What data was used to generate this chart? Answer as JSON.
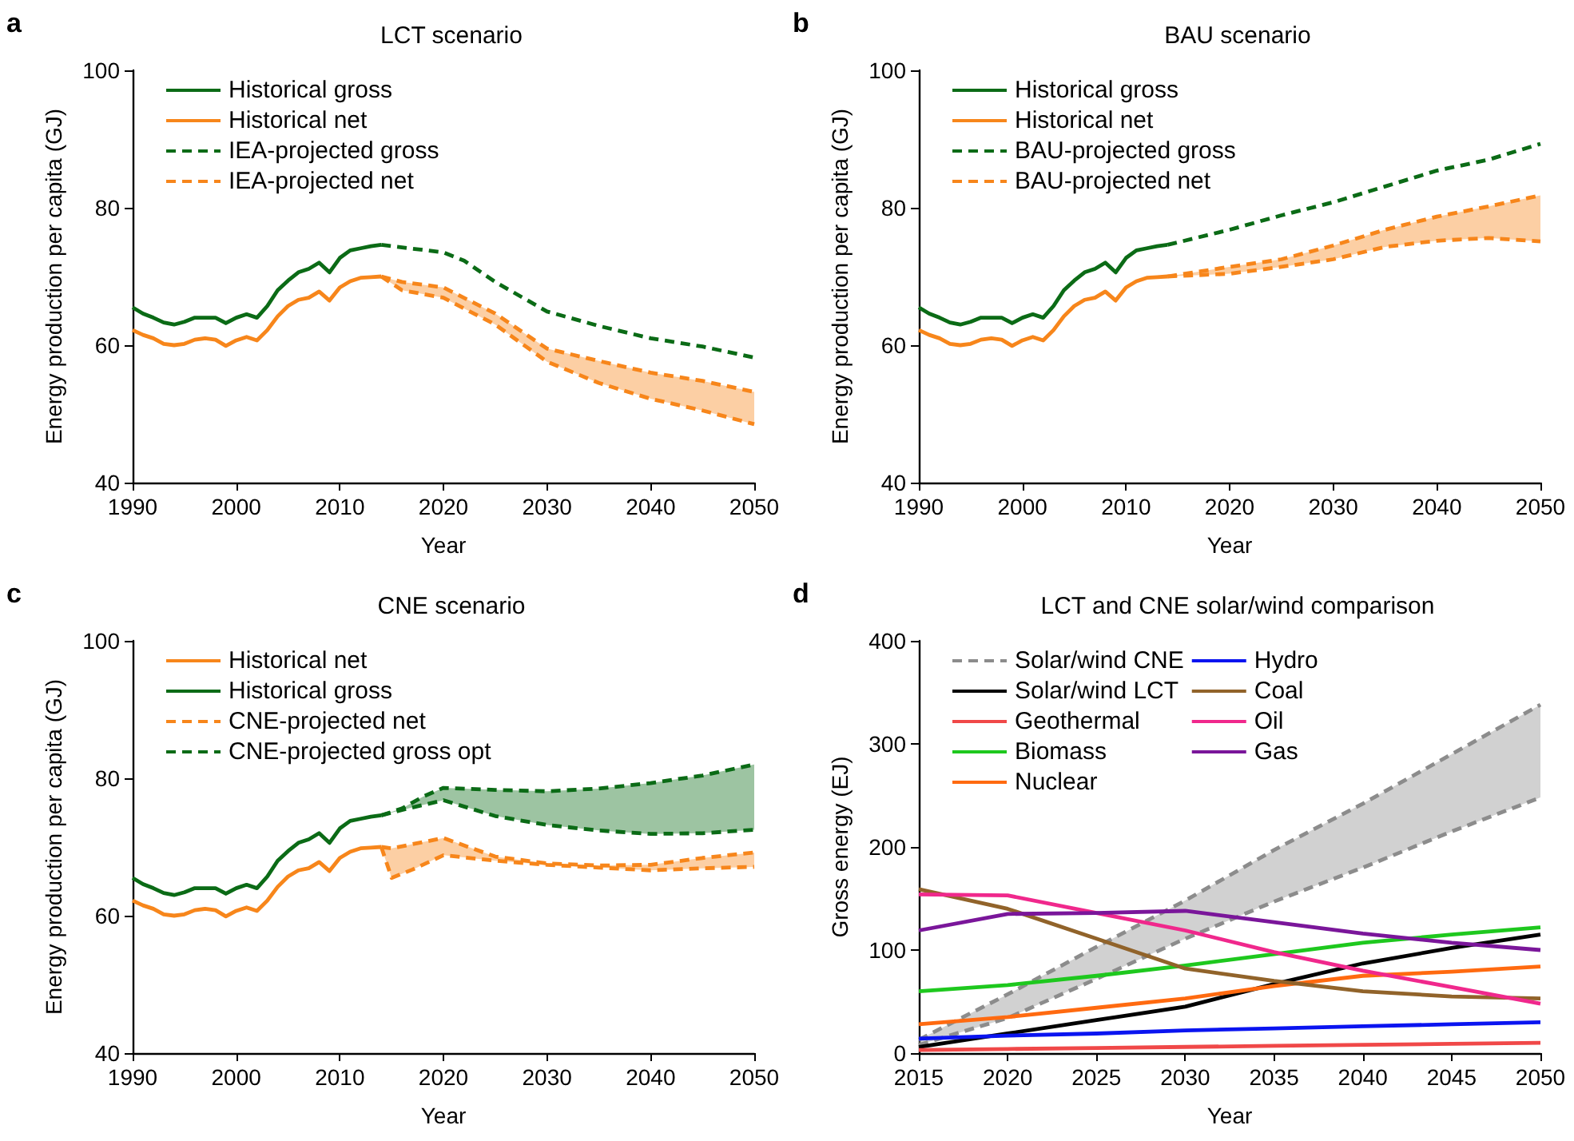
{
  "chart_data": [
    {
      "type": "line",
      "title": "LCT scenario",
      "annotations": [
        "a"
      ],
      "xlabel": "Year",
      "ylabel": "Energy production per capita (GJ)",
      "xlim": [
        1990,
        2050
      ],
      "xticks": [
        1990,
        2000,
        2010,
        2020,
        2030,
        2040,
        2050
      ],
      "ylim": [
        40,
        100
      ],
      "yticks": [
        40,
        60,
        80,
        100
      ],
      "legend": "top left",
      "marker": "none",
      "series": [
        {
          "name": "Historical gross",
          "color": "#0b6b16",
          "line_style": "solid",
          "x": [
            1990,
            1991,
            1992,
            1993,
            1994,
            1995,
            1996,
            1997,
            1998,
            1999,
            2000,
            2001,
            2002,
            2003,
            2004,
            2005,
            2006,
            2007,
            2008,
            2009,
            2010,
            2011,
            2012,
            2013,
            2014
          ],
          "values": [
            65.5,
            64.6,
            64,
            63.3,
            63,
            63.4,
            64,
            64,
            64,
            63.2,
            64,
            64.5,
            64,
            65.7,
            68,
            69.4,
            70.6,
            71.1,
            72,
            70.6,
            72.7,
            73.8,
            74.1,
            74.4,
            74.6
          ]
        },
        {
          "name": "Historical net",
          "color": "#f7861b",
          "line_style": "solid",
          "x": [
            1990,
            1991,
            1992,
            1993,
            1994,
            1995,
            1996,
            1997,
            1998,
            1999,
            2000,
            2001,
            2002,
            2003,
            2004,
            2005,
            2006,
            2007,
            2008,
            2009,
            2010,
            2011,
            2012,
            2013,
            2014
          ],
          "values": [
            62.2,
            61.5,
            61,
            60.2,
            60,
            60.2,
            60.8,
            61,
            60.8,
            59.9,
            60.7,
            61.2,
            60.7,
            62.2,
            64.2,
            65.7,
            66.6,
            66.9,
            67.8,
            66.5,
            68.4,
            69.3,
            69.8,
            69.9,
            70
          ]
        },
        {
          "name": "IEA-projected gross",
          "color": "#0b6b16",
          "line_style": "dashed",
          "x": [
            2014,
            2020,
            2022,
            2025,
            2030,
            2035,
            2040,
            2045,
            2050
          ],
          "values": [
            74.6,
            73.5,
            72.3,
            69.2,
            64.9,
            62.8,
            61,
            59.8,
            58.2
          ]
        },
        {
          "name": "IEA-projected net",
          "color": "#f7861b",
          "line_style": "dashed",
          "x": [
            2014,
            2016,
            2020,
            2025,
            2030,
            2035,
            2040,
            2045,
            2050
          ],
          "values": [
            70,
            69.2,
            68.4,
            64.6,
            59.5,
            57.7,
            56,
            54.8,
            53.2
          ],
          "lower": [
            70,
            68,
            66.9,
            63,
            57.6,
            54.5,
            52.2,
            50.5,
            48.5
          ],
          "upper": [
            70,
            69.2,
            68.4,
            64.6,
            59.5,
            57.7,
            56,
            54.8,
            53.2
          ]
        },
        {
          "color": "#f7861b",
          "line_style": "dashed",
          "x": [
            2014,
            2016,
            2020,
            2025,
            2030,
            2035,
            2040,
            2045,
            2050
          ],
          "values": [
            70,
            68,
            66.9,
            63,
            57.6,
            54.5,
            52.2,
            50.5,
            48.5
          ]
        }
      ]
    },
    {
      "type": "line",
      "title": "BAU scenario",
      "annotations": [
        "b"
      ],
      "xlabel": "Year",
      "ylabel": "Energy production per capita (GJ)",
      "xlim": [
        1990,
        2050
      ],
      "xticks": [
        1990,
        2000,
        2010,
        2020,
        2030,
        2040,
        2050
      ],
      "ylim": [
        40,
        100
      ],
      "yticks": [
        40,
        60,
        80,
        100
      ],
      "legend": "top left",
      "marker": "none",
      "series": [
        {
          "name": "Historical gross",
          "color": "#0b6b16",
          "line_style": "solid",
          "x": [
            1990,
            1991,
            1992,
            1993,
            1994,
            1995,
            1996,
            1997,
            1998,
            1999,
            2000,
            2001,
            2002,
            2003,
            2004,
            2005,
            2006,
            2007,
            2008,
            2009,
            2010,
            2011,
            2012,
            2013,
            2014
          ],
          "values": [
            65.5,
            64.6,
            64,
            63.3,
            63,
            63.4,
            64,
            64,
            64,
            63.2,
            64,
            64.5,
            64,
            65.7,
            68,
            69.4,
            70.6,
            71.1,
            72,
            70.6,
            72.7,
            73.8,
            74.1,
            74.4,
            74.6
          ]
        },
        {
          "name": "Historical net",
          "color": "#f7861b",
          "line_style": "solid",
          "x": [
            1990,
            1991,
            1992,
            1993,
            1994,
            1995,
            1996,
            1997,
            1998,
            1999,
            2000,
            2001,
            2002,
            2003,
            2004,
            2005,
            2006,
            2007,
            2008,
            2009,
            2010,
            2011,
            2012,
            2013,
            2014
          ],
          "values": [
            62.2,
            61.5,
            61,
            60.2,
            60,
            60.2,
            60.8,
            61,
            60.8,
            59.9,
            60.7,
            61.2,
            60.7,
            62.2,
            64.2,
            65.7,
            66.6,
            66.9,
            67.8,
            66.5,
            68.4,
            69.3,
            69.8,
            69.9,
            70
          ]
        },
        {
          "name": "BAU-projected gross",
          "color": "#0b6b16",
          "line_style": "dashed",
          "x": [
            2014,
            2020,
            2025,
            2030,
            2035,
            2040,
            2045,
            2050
          ],
          "values": [
            74.6,
            76.8,
            78.9,
            80.8,
            83.1,
            85.4,
            87,
            89.3
          ]
        },
        {
          "name": "BAU-projected net",
          "color": "#f7861b",
          "line_style": "dashed",
          "x": [
            2014,
            2020,
            2025,
            2030,
            2035,
            2040,
            2045,
            2050
          ],
          "values": [
            70,
            71.4,
            72.5,
            74.5,
            76.8,
            78.7,
            80.2,
            81.8
          ],
          "lower": [
            70,
            70.4,
            71.4,
            72.5,
            74.3,
            75.2,
            75.6,
            75.1
          ],
          "upper": [
            70,
            71.4,
            72.5,
            74.5,
            76.8,
            78.7,
            80.2,
            81.8
          ]
        },
        {
          "color": "#f7861b",
          "line_style": "dashed",
          "x": [
            2014,
            2020,
            2025,
            2030,
            2035,
            2040,
            2045,
            2050
          ],
          "values": [
            70,
            70.4,
            71.4,
            72.5,
            74.3,
            75.2,
            75.6,
            75.1
          ]
        }
      ]
    },
    {
      "type": "line",
      "title": "CNE scenario",
      "annotations": [
        "c"
      ],
      "xlabel": "Year",
      "ylabel": "Energy production per capita (GJ)",
      "xlim": [
        1990,
        2050
      ],
      "xticks": [
        1990,
        2000,
        2010,
        2020,
        2030,
        2040,
        2050
      ],
      "ylim": [
        40,
        100
      ],
      "yticks": [
        40,
        60,
        80,
        100
      ],
      "legend": "top left",
      "marker": "none",
      "series": [
        {
          "name": "Historical net",
          "color": "#f7861b",
          "line_style": "solid",
          "x": [
            1990,
            1991,
            1992,
            1993,
            1994,
            1995,
            1996,
            1997,
            1998,
            1999,
            2000,
            2001,
            2002,
            2003,
            2004,
            2005,
            2006,
            2007,
            2008,
            2009,
            2010,
            2011,
            2012,
            2013,
            2014
          ],
          "values": [
            62.2,
            61.5,
            61,
            60.2,
            60,
            60.2,
            60.8,
            61,
            60.8,
            59.9,
            60.7,
            61.2,
            60.7,
            62.2,
            64.2,
            65.7,
            66.6,
            66.9,
            67.8,
            66.5,
            68.4,
            69.3,
            69.8,
            69.9,
            70
          ]
        },
        {
          "name": "Historical gross",
          "color": "#0b6b16",
          "line_style": "solid",
          "x": [
            1990,
            1991,
            1992,
            1993,
            1994,
            1995,
            1996,
            1997,
            1998,
            1999,
            2000,
            2001,
            2002,
            2003,
            2004,
            2005,
            2006,
            2007,
            2008,
            2009,
            2010,
            2011,
            2012,
            2013,
            2014
          ],
          "values": [
            65.5,
            64.6,
            64,
            63.3,
            63,
            63.4,
            64,
            64,
            64,
            63.2,
            64,
            64.5,
            64,
            65.7,
            68,
            69.4,
            70.6,
            71.1,
            72,
            70.6,
            72.7,
            73.8,
            74.1,
            74.4,
            74.6
          ]
        },
        {
          "name": "CNE-projected net",
          "color": "#f7861b",
          "line_style": "dashed",
          "x": [
            2014,
            2015,
            2017,
            2020,
            2025,
            2030,
            2035,
            2040,
            2045,
            2050
          ],
          "values": [
            70,
            69.8,
            70.4,
            71.3,
            68.6,
            67.6,
            67.3,
            67.4,
            68.4,
            69.2
          ],
          "lower": [
            70,
            65.5,
            66.7,
            68.8,
            68,
            67.4,
            67,
            66.6,
            66.9,
            67.1
          ],
          "upper": [
            70,
            69.8,
            70.4,
            71.3,
            68.6,
            67.6,
            67.3,
            67.4,
            68.4,
            69.2
          ]
        },
        {
          "color": "#f7861b",
          "line_style": "dashed",
          "x": [
            2014,
            2015,
            2017,
            2020,
            2025,
            2030,
            2035,
            2040,
            2045,
            2050
          ],
          "values": [
            70,
            65.5,
            66.7,
            68.8,
            68,
            67.4,
            67,
            66.6,
            66.9,
            67.1
          ]
        },
        {
          "name": "CNE-projected gross opt",
          "color": "#0b6b16",
          "line_style": "dashed",
          "x": [
            2014,
            2016,
            2018,
            2020,
            2025,
            2030,
            2035,
            2040,
            2045,
            2050
          ],
          "values": [
            74.6,
            75.6,
            77.3,
            78.6,
            78.3,
            78.1,
            78.5,
            79.3,
            80.4,
            82
          ],
          "lower": [
            74.6,
            75.4,
            76.1,
            76.8,
            74.5,
            73.2,
            72.4,
            71.9,
            72,
            72.5
          ],
          "upper": [
            74.6,
            75.6,
            77.3,
            78.6,
            78.3,
            78.1,
            78.5,
            79.3,
            80.4,
            82
          ]
        },
        {
          "color": "#0b6b16",
          "line_style": "dashed",
          "x": [
            2014,
            2016,
            2018,
            2020,
            2025,
            2030,
            2035,
            2040,
            2045,
            2050
          ],
          "values": [
            74.6,
            75.4,
            76.1,
            76.8,
            74.5,
            73.2,
            72.4,
            71.9,
            72,
            72.5
          ]
        }
      ]
    },
    {
      "type": "line",
      "title": "LCT and CNE solar/wind comparison",
      "annotations": [
        "d"
      ],
      "xlabel": "Year",
      "ylabel": "Gross energy (EJ)",
      "xlim": [
        2015,
        2050
      ],
      "xticks": [
        2015,
        2020,
        2025,
        2030,
        2035,
        2040,
        2045,
        2050
      ],
      "ylim": [
        0,
        400
      ],
      "yticks": [
        0,
        100,
        200,
        300,
        400
      ],
      "legend": "top left",
      "marker": "none",
      "x": [
        2015,
        2020,
        2025,
        2030,
        2035,
        2040,
        2045,
        2050
      ],
      "series": [
        {
          "name": "Solar/wind CNE",
          "color": "#8c8c8c",
          "line_style": "dashed",
          "values": [
            13,
            57,
            103,
            148,
            197,
            242,
            290,
            338
          ],
          "lower": [
            8,
            34,
            72,
            111,
            147,
            180,
            215,
            248
          ],
          "upper": [
            13,
            57,
            103,
            148,
            197,
            242,
            290,
            338
          ]
        },
        {
          "color": "#8c8c8c",
          "line_style": "dashed",
          "values": [
            8,
            34,
            72,
            111,
            147,
            180,
            215,
            248
          ]
        },
        {
          "name": "Solar/wind LCT",
          "color": "#000000",
          "line_style": "solid",
          "values": [
            6,
            19,
            32,
            45,
            67,
            87,
            102,
            115
          ]
        },
        {
          "name": "Geothermal",
          "color": "#f04848",
          "line_style": "solid",
          "values": [
            3,
            4,
            5,
            6,
            7,
            8,
            9,
            10
          ]
        },
        {
          "name": "Biomass",
          "color": "#1ec81e",
          "line_style": "solid",
          "values": [
            60,
            66,
            75,
            85,
            96,
            107,
            115,
            122
          ]
        },
        {
          "name": "Nuclear",
          "color": "#ff6a10",
          "line_style": "solid",
          "values": [
            28,
            35,
            44,
            53,
            65,
            75,
            79,
            84
          ]
        },
        {
          "name": "Hydro",
          "color": "#0a14f0",
          "line_style": "solid",
          "values": [
            14,
            17,
            19,
            22,
            24,
            26,
            28,
            30
          ]
        },
        {
          "name": "Coal",
          "color": "#91632a",
          "line_style": "solid",
          "values": [
            159,
            140,
            111,
            82,
            70,
            60,
            55,
            53
          ]
        },
        {
          "name": "Oil",
          "color": "#f0288c",
          "line_style": "solid",
          "values": [
            154,
            153,
            136,
            119,
            98,
            80,
            64,
            48
          ]
        },
        {
          "name": "Gas",
          "color": "#7a169a",
          "line_style": "solid",
          "values": [
            119,
            135,
            136,
            138,
            127,
            116,
            107,
            100
          ]
        }
      ]
    }
  ]
}
